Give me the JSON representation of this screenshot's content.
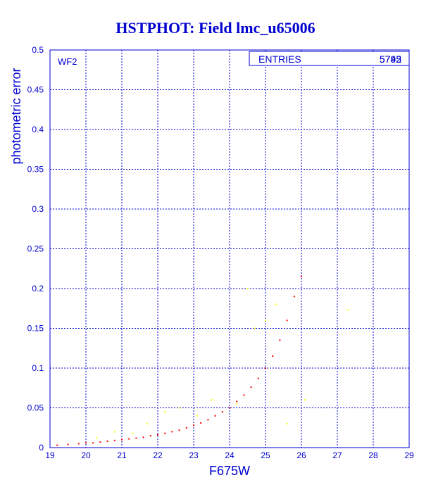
{
  "chart_data": {
    "type": "scatter",
    "title": "HSTPHOT: Field lmc_u65006",
    "subtitle": "",
    "xlabel": "F675W",
    "ylabel": "photometric error",
    "xlim": [
      19,
      29
    ],
    "ylim": [
      0,
      0.5
    ],
    "x_ticks": [
      "19",
      "20",
      "21",
      "22",
      "23",
      "24",
      "25",
      "26",
      "27",
      "28",
      "29"
    ],
    "y_ticks": [
      "0",
      "0.05",
      "0.1",
      "0.15",
      "0.2",
      "0.25",
      "0.3",
      "0.35",
      "0.4",
      "0.45",
      "0.5"
    ],
    "grid": true,
    "panel_label": "WF2",
    "stats_box": {
      "label": "ENTRIES",
      "values": [
        "5745",
        "5792"
      ]
    },
    "series": [
      {
        "color": "#ff0000",
        "points": [
          [
            19.2,
            0.003
          ],
          [
            19.5,
            0.004
          ],
          [
            19.8,
            0.005
          ],
          [
            20.0,
            0.006
          ],
          [
            20.2,
            0.006
          ],
          [
            20.4,
            0.007
          ],
          [
            20.6,
            0.008
          ],
          [
            20.8,
            0.009
          ],
          [
            21.0,
            0.01
          ],
          [
            21.2,
            0.011
          ],
          [
            21.4,
            0.012
          ],
          [
            21.6,
            0.013
          ],
          [
            21.8,
            0.015
          ],
          [
            22.0,
            0.016
          ],
          [
            22.2,
            0.018
          ],
          [
            22.4,
            0.02
          ],
          [
            22.6,
            0.022
          ],
          [
            22.8,
            0.025
          ],
          [
            23.0,
            0.028
          ],
          [
            23.2,
            0.031
          ],
          [
            23.4,
            0.035
          ],
          [
            23.6,
            0.04
          ],
          [
            23.8,
            0.045
          ],
          [
            24.0,
            0.05
          ],
          [
            24.2,
            0.058
          ],
          [
            24.4,
            0.066
          ],
          [
            24.6,
            0.076
          ],
          [
            24.8,
            0.087
          ],
          [
            25.0,
            0.1
          ],
          [
            25.2,
            0.115
          ],
          [
            25.4,
            0.135
          ],
          [
            25.6,
            0.16
          ],
          [
            25.8,
            0.19
          ],
          [
            26.0,
            0.215
          ]
        ]
      },
      {
        "color": "#ffff00",
        "points": [
          [
            20.3,
            0.012
          ],
          [
            20.8,
            0.02
          ],
          [
            21.3,
            0.018
          ],
          [
            21.7,
            0.03
          ],
          [
            22.2,
            0.045
          ],
          [
            22.6,
            0.05
          ],
          [
            23.1,
            0.04
          ],
          [
            23.5,
            0.06
          ],
          [
            24.2,
            0.055
          ],
          [
            24.5,
            0.2
          ],
          [
            24.7,
            0.15
          ],
          [
            25.0,
            0.16
          ],
          [
            25.3,
            0.18
          ],
          [
            25.6,
            0.03
          ],
          [
            26.1,
            0.06
          ],
          [
            27.3,
            0.173
          ]
        ]
      }
    ]
  }
}
